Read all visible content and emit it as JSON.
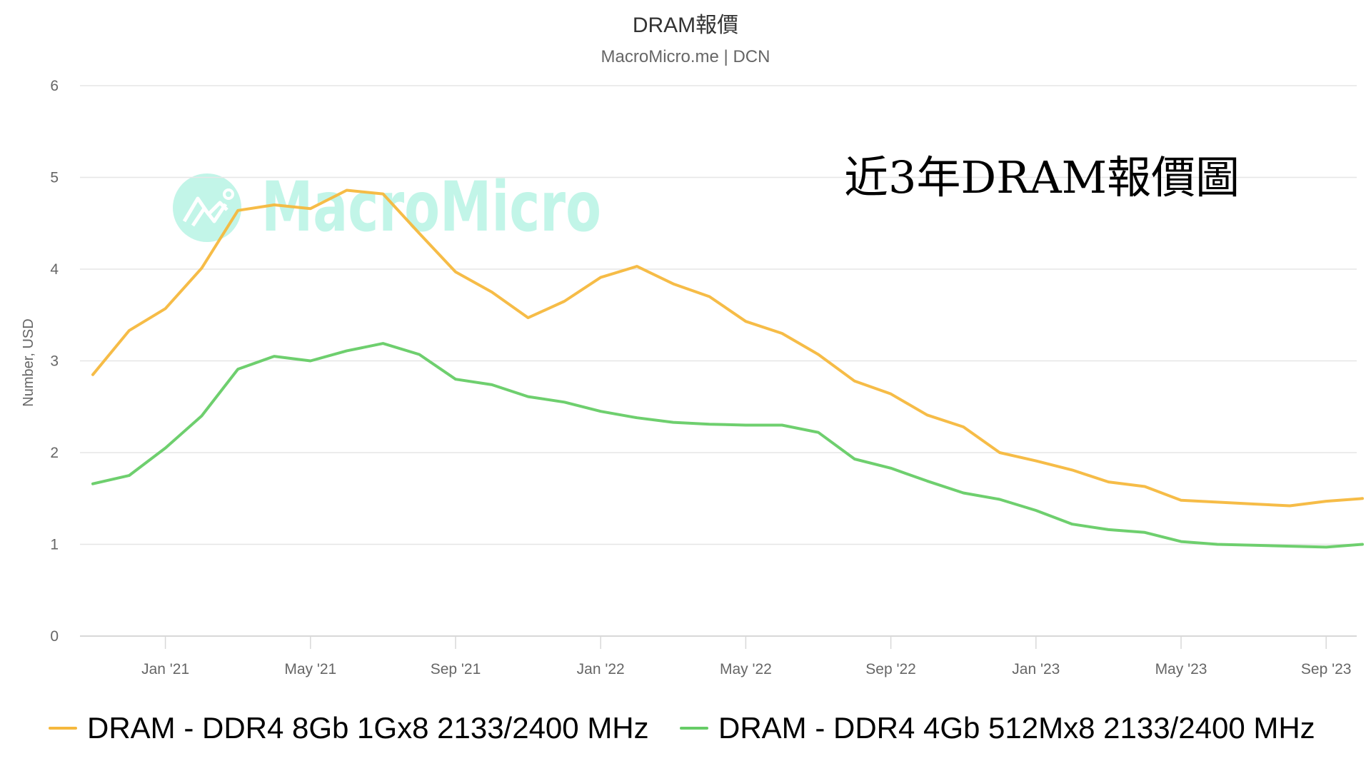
{
  "header": {
    "title": "DRAM報價",
    "subtitle": "MacroMicro.me | DCN"
  },
  "annotation": "近3年DRAM報價圖",
  "watermark": "MacroMicro",
  "colors": {
    "series_1": "#f5b83d",
    "series_2": "#66cc66",
    "watermark": "#c2f5e8",
    "grid": "#e6e6e6"
  },
  "legend": [
    {
      "label": "DRAM - DDR4 8Gb 1Gx8 2133/2400 MHz",
      "color": "#f5b83d"
    },
    {
      "label": "DRAM - DDR4 4Gb 512Mx8 2133/2400 MHz",
      "color": "#66cc66"
    }
  ],
  "chart_data": {
    "type": "line",
    "title": "DRAM報價",
    "subtitle": "MacroMicro.me | DCN",
    "xlabel": "",
    "ylabel": "Number, USD",
    "ylim": [
      0,
      6
    ],
    "yticks": [
      0,
      1,
      2,
      3,
      4,
      5,
      6
    ],
    "xtick_labels": [
      "Jan '21",
      "May '21",
      "Sep '21",
      "Jan '22",
      "May '22",
      "Sep '22",
      "Jan '23",
      "May '23",
      "Sep '23"
    ],
    "grid": true,
    "legend_position": "bottom",
    "annotation": "近3年DRAM報價圖",
    "x": [
      "Nov '20",
      "Dec '20",
      "Jan '21",
      "Feb '21",
      "Mar '21",
      "Apr '21",
      "May '21",
      "Jun '21",
      "Jul '21",
      "Aug '21",
      "Sep '21",
      "Oct '21",
      "Nov '21",
      "Dec '21",
      "Jan '22",
      "Feb '22",
      "Mar '22",
      "Apr '22",
      "May '22",
      "Jun '22",
      "Jul '22",
      "Aug '22",
      "Sep '22",
      "Oct '22",
      "Nov '22",
      "Dec '22",
      "Jan '23",
      "Feb '23",
      "Mar '23",
      "Apr '23",
      "May '23",
      "Jun '23",
      "Jul '23",
      "Aug '23",
      "Sep '23",
      "Oct '23"
    ],
    "series": [
      {
        "name": "DRAM - DDR4 8Gb 1Gx8 2133/2400 MHz",
        "color": "#f5b83d",
        "values": [
          2.85,
          3.33,
          3.57,
          4.01,
          4.64,
          4.7,
          4.66,
          4.86,
          4.82,
          4.39,
          3.97,
          3.75,
          3.47,
          3.65,
          3.91,
          4.03,
          3.84,
          3.7,
          3.43,
          3.3,
          3.07,
          2.78,
          2.64,
          2.41,
          2.28,
          2.0,
          1.91,
          1.81,
          1.68,
          1.63,
          1.48,
          1.46,
          1.44,
          1.42,
          1.47,
          1.5
        ]
      },
      {
        "name": "DRAM - DDR4 4Gb 512Mx8 2133/2400 MHz",
        "color": "#66cc66",
        "values": [
          1.66,
          1.75,
          2.05,
          2.4,
          2.91,
          3.05,
          3.0,
          3.11,
          3.19,
          3.07,
          2.8,
          2.74,
          2.61,
          2.55,
          2.45,
          2.38,
          2.33,
          2.31,
          2.3,
          2.3,
          2.22,
          1.93,
          1.83,
          1.69,
          1.56,
          1.49,
          1.37,
          1.22,
          1.16,
          1.13,
          1.03,
          1.0,
          0.99,
          0.98,
          0.97,
          1.0
        ]
      }
    ]
  }
}
